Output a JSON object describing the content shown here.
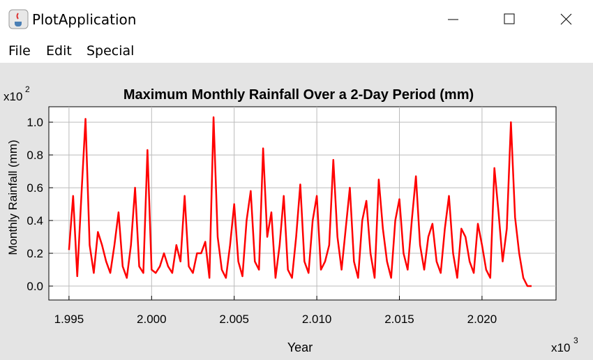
{
  "window": {
    "title": "PlotApplication"
  },
  "menu": [
    "File",
    "Edit",
    "Special"
  ],
  "chart_data": {
    "type": "line",
    "title": "Maximum Monthly Rainfall Over a 2-Day Period (mm)",
    "x_label": "Year",
    "y_label": "Monthly Rainfall (mm)",
    "x_multiplier": {
      "base": "x10",
      "exponent": "3"
    },
    "y_multiplier": {
      "base": "x10",
      "exponent": "2"
    },
    "xlim": [
      1.99378,
      2.02448
    ],
    "ylim": [
      -0.085,
      1.094
    ],
    "xticks": [
      1.995,
      2,
      2.005,
      2.01,
      2.015,
      2.02
    ],
    "xtick_labels": [
      "1.995",
      "2.000",
      "2.005",
      "2.010",
      "2.015",
      "2.020"
    ],
    "yticks": [
      {
        "value": 0,
        "label": "0.0"
      },
      0.2,
      0.4,
      0.6,
      0.8,
      {
        "value": 1,
        "label": "1.0"
      }
    ],
    "grid": true,
    "series": [
      {
        "color": "#ff0000",
        "x": [
          1.995,
          1.99525,
          1.9955,
          1.99575,
          1.996,
          1.99625,
          1.9965,
          1.99675,
          1.997,
          1.99725,
          1.9975,
          1.99775,
          1.998,
          1.99825,
          1.9985,
          1.99875,
          1.999,
          1.99925,
          1.9995,
          1.99975,
          2,
          2.00025,
          2.0005,
          2.00075,
          2.001,
          2.00125,
          2.0015,
          2.00175,
          2.002,
          2.00225,
          2.0025,
          2.00275,
          2.003,
          2.00325,
          2.0035,
          2.00375,
          2.004,
          2.00425,
          2.0045,
          2.00475,
          2.005,
          2.00525,
          2.0055,
          2.00575,
          2.006,
          2.00625,
          2.0065,
          2.00675,
          2.007,
          2.00725,
          2.0075,
          2.00775,
          2.008,
          2.00825,
          2.0085,
          2.00875,
          2.009,
          2.00925,
          2.0095,
          2.00975,
          2.01,
          2.01025,
          2.0105,
          2.01075,
          2.011,
          2.01125,
          2.0115,
          2.01175,
          2.012,
          2.01225,
          2.0125,
          2.01275,
          2.013,
          2.01325,
          2.0135,
          2.01375,
          2.014,
          2.01425,
          2.0145,
          2.01475,
          2.015,
          2.01525,
          2.0155,
          2.01575,
          2.016,
          2.01625,
          2.0165,
          2.01675,
          2.017,
          2.01725,
          2.0175,
          2.01775,
          2.018,
          2.01825,
          2.0185,
          2.01875,
          2.019,
          2.01925,
          2.0195,
          2.01975,
          2.02,
          2.02025,
          2.0205,
          2.02075,
          2.021,
          2.02125,
          2.0215,
          2.02175,
          2.022,
          2.02225,
          2.0225,
          2.02275,
          2.023
        ],
        "values": [
          0.22,
          0.55,
          0.06,
          0.55,
          1.02,
          0.25,
          0.08,
          0.33,
          0.25,
          0.15,
          0.08,
          0.25,
          0.45,
          0.12,
          0.05,
          0.25,
          0.6,
          0.12,
          0.08,
          0.83,
          0.1,
          0.08,
          0.12,
          0.2,
          0.12,
          0.08,
          0.25,
          0.15,
          0.55,
          0.12,
          0.08,
          0.2,
          0.2,
          0.27,
          0.05,
          1.03,
          0.3,
          0.1,
          0.05,
          0.25,
          0.5,
          0.15,
          0.06,
          0.4,
          0.58,
          0.15,
          0.1,
          0.84,
          0.3,
          0.45,
          0.05,
          0.25,
          0.55,
          0.1,
          0.05,
          0.3,
          0.62,
          0.15,
          0.08,
          0.4,
          0.55,
          0.1,
          0.15,
          0.25,
          0.77,
          0.3,
          0.1,
          0.35,
          0.6,
          0.15,
          0.05,
          0.4,
          0.52,
          0.2,
          0.05,
          0.65,
          0.35,
          0.15,
          0.05,
          0.4,
          0.53,
          0.2,
          0.1,
          0.4,
          0.67,
          0.25,
          0.1,
          0.3,
          0.38,
          0.15,
          0.08,
          0.35,
          0.55,
          0.2,
          0.05,
          0.35,
          0.3,
          0.15,
          0.08,
          0.38,
          0.25,
          0.1,
          0.05,
          0.72,
          0.45,
          0.15,
          0.35,
          1.0,
          0.42,
          0.2,
          0.05,
          0,
          0
        ]
      }
    ]
  }
}
